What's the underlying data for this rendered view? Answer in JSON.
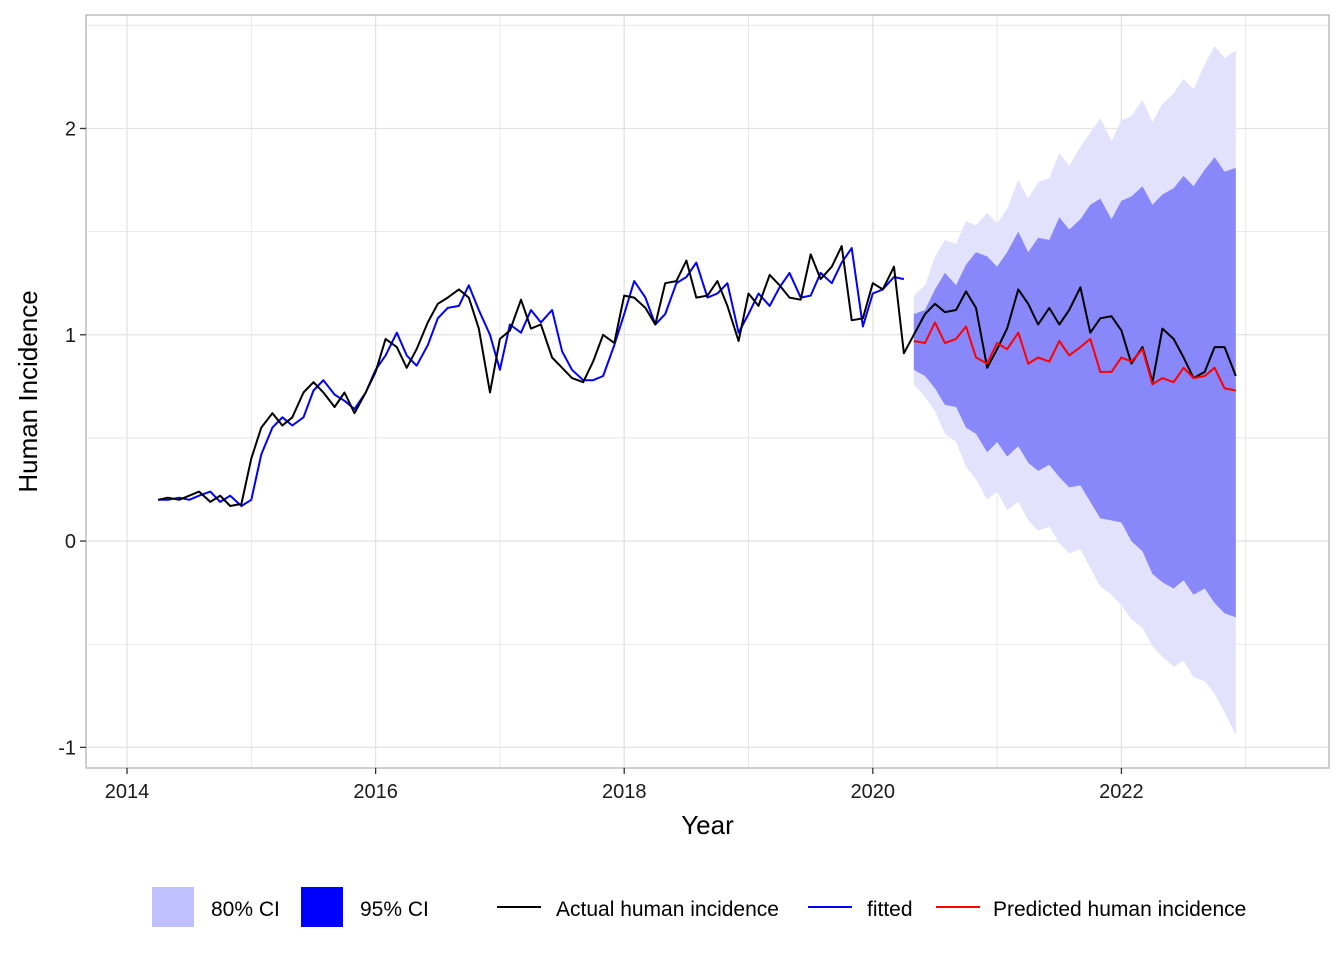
{
  "chart_data": {
    "type": "line",
    "title": "",
    "xlabel": "Year",
    "ylabel": "Human Incidence",
    "xlim": [
      2013.67,
      2023.67
    ],
    "ylim": [
      -1.1,
      2.55
    ],
    "x_ticks": [
      2014,
      2016,
      2018,
      2020,
      2022
    ],
    "x_tick_labels": [
      "2014",
      "2016",
      "2018",
      "2020",
      "2022"
    ],
    "y_ticks": [
      -1,
      0,
      1,
      2
    ],
    "y_tick_labels": [
      "-1",
      "0",
      "1",
      "2"
    ],
    "grid": true,
    "legend_position": "bottom",
    "legend": {
      "fills": [
        {
          "label": "80% CI",
          "color": "#c0c0ff"
        },
        {
          "label": "95% CI",
          "color": "#0000ff"
        }
      ],
      "lines": [
        {
          "label": "Actual human incidence",
          "color": "#000000"
        },
        {
          "label": "fitted",
          "color": "#0000ff"
        },
        {
          "label": "Predicted human incidence",
          "color": "#ff0000"
        }
      ]
    },
    "colors": {
      "band_outer": "#e2e2fc",
      "band_inner": "#8888fa",
      "actual": "#000000",
      "fitted": "#0000ff",
      "predicted": "#ff0000",
      "grid": "#e3e3e3",
      "panel_border": "#b3b3b3"
    },
    "bands": {
      "x": [
        2020.33,
        2020.42,
        2020.5,
        2020.58,
        2020.67,
        2020.75,
        2020.83,
        2020.92,
        2021.0,
        2021.08,
        2021.17,
        2021.25,
        2021.33,
        2021.42,
        2021.5,
        2021.58,
        2021.67,
        2021.75,
        2021.83,
        2021.92,
        2022.0,
        2022.08,
        2022.17,
        2022.25,
        2022.33,
        2022.42,
        2022.5,
        2022.58,
        2022.67,
        2022.75,
        2022.83,
        2022.92
      ],
      "outer_upper": [
        1.19,
        1.24,
        1.38,
        1.46,
        1.44,
        1.55,
        1.53,
        1.59,
        1.54,
        1.61,
        1.75,
        1.66,
        1.74,
        1.76,
        1.88,
        1.82,
        1.91,
        1.98,
        2.05,
        1.94,
        2.04,
        2.06,
        2.14,
        2.03,
        2.12,
        2.17,
        2.24,
        2.19,
        2.31,
        2.4,
        2.34,
        2.38
      ],
      "inner_upper": [
        1.1,
        1.12,
        1.22,
        1.3,
        1.24,
        1.34,
        1.4,
        1.38,
        1.33,
        1.4,
        1.5,
        1.4,
        1.47,
        1.46,
        1.57,
        1.51,
        1.56,
        1.63,
        1.66,
        1.56,
        1.65,
        1.67,
        1.72,
        1.63,
        1.68,
        1.71,
        1.77,
        1.72,
        1.8,
        1.86,
        1.79,
        1.81
      ],
      "inner_lower": [
        0.83,
        0.8,
        0.74,
        0.66,
        0.65,
        0.55,
        0.52,
        0.43,
        0.48,
        0.41,
        0.46,
        0.38,
        0.34,
        0.37,
        0.31,
        0.26,
        0.27,
        0.19,
        0.11,
        0.1,
        0.09,
        0.0,
        -0.05,
        -0.16,
        -0.2,
        -0.23,
        -0.19,
        -0.26,
        -0.23,
        -0.3,
        -0.35,
        -0.37
      ],
      "outer_lower": [
        0.76,
        0.7,
        0.63,
        0.52,
        0.48,
        0.36,
        0.3,
        0.2,
        0.24,
        0.15,
        0.19,
        0.1,
        0.05,
        0.07,
        -0.01,
        -0.06,
        -0.04,
        -0.13,
        -0.22,
        -0.26,
        -0.31,
        -0.38,
        -0.42,
        -0.51,
        -0.56,
        -0.61,
        -0.58,
        -0.66,
        -0.68,
        -0.74,
        -0.83,
        -0.94
      ]
    },
    "series": [
      {
        "name": "Actual human incidence",
        "x": [
          2014.25,
          2014.33,
          2014.42,
          2014.5,
          2014.58,
          2014.67,
          2014.75,
          2014.83,
          2014.92,
          2015.0,
          2015.08,
          2015.17,
          2015.25,
          2015.33,
          2015.42,
          2015.5,
          2015.58,
          2015.67,
          2015.75,
          2015.83,
          2015.92,
          2016.0,
          2016.08,
          2016.17,
          2016.25,
          2016.33,
          2016.42,
          2016.5,
          2016.58,
          2016.67,
          2016.75,
          2016.83,
          2016.92,
          2017.0,
          2017.08,
          2017.17,
          2017.25,
          2017.33,
          2017.42,
          2017.5,
          2017.58,
          2017.67,
          2017.75,
          2017.83,
          2017.92,
          2018.0,
          2018.08,
          2018.17,
          2018.25,
          2018.33,
          2018.42,
          2018.5,
          2018.58,
          2018.67,
          2018.75,
          2018.83,
          2018.92,
          2019.0,
          2019.08,
          2019.17,
          2019.25,
          2019.33,
          2019.42,
          2019.5,
          2019.58,
          2019.67,
          2019.75,
          2019.83,
          2019.92,
          2020.0,
          2020.08,
          2020.17,
          2020.25,
          2020.33,
          2020.42,
          2020.5,
          2020.58,
          2020.67,
          2020.75,
          2020.83,
          2020.92,
          2021.0,
          2021.08,
          2021.17,
          2021.25,
          2021.33,
          2021.42,
          2021.5,
          2021.58,
          2021.67,
          2021.75,
          2021.83,
          2021.92,
          2022.0,
          2022.08,
          2022.17,
          2022.25,
          2022.33,
          2022.42,
          2022.5,
          2022.58,
          2022.67,
          2022.75,
          2022.83,
          2022.92
        ],
        "values": [
          0.2,
          0.21,
          0.2,
          0.22,
          0.24,
          0.19,
          0.22,
          0.17,
          0.18,
          0.4,
          0.55,
          0.62,
          0.56,
          0.6,
          0.72,
          0.77,
          0.72,
          0.65,
          0.72,
          0.62,
          0.72,
          0.82,
          0.98,
          0.94,
          0.84,
          0.93,
          1.06,
          1.15,
          1.18,
          1.22,
          1.18,
          1.03,
          0.72,
          0.98,
          1.02,
          1.17,
          1.03,
          1.05,
          0.89,
          0.84,
          0.79,
          0.77,
          0.87,
          1.0,
          0.96,
          1.19,
          1.18,
          1.13,
          1.05,
          1.25,
          1.26,
          1.36,
          1.18,
          1.19,
          1.26,
          1.14,
          0.97,
          1.2,
          1.14,
          1.29,
          1.24,
          1.18,
          1.17,
          1.39,
          1.27,
          1.33,
          1.43,
          1.07,
          1.08,
          1.25,
          1.22,
          1.33,
          0.91,
          1.0,
          1.1,
          1.15,
          1.11,
          1.12,
          1.21,
          1.13,
          0.84,
          0.93,
          1.03,
          1.22,
          1.15,
          1.05,
          1.13,
          1.05,
          1.12,
          1.23,
          1.01,
          1.08,
          1.09,
          1.02,
          0.86,
          0.94,
          0.77,
          1.03,
          0.98,
          0.89,
          0.79,
          0.82,
          0.94,
          0.94,
          0.8
        ]
      },
      {
        "name": "fitted",
        "x": [
          2014.25,
          2014.33,
          2014.42,
          2014.5,
          2014.58,
          2014.67,
          2014.75,
          2014.83,
          2014.92,
          2015.0,
          2015.08,
          2015.17,
          2015.25,
          2015.33,
          2015.42,
          2015.5,
          2015.58,
          2015.67,
          2015.75,
          2015.83,
          2015.92,
          2016.0,
          2016.08,
          2016.17,
          2016.25,
          2016.33,
          2016.42,
          2016.5,
          2016.58,
          2016.67,
          2016.75,
          2016.83,
          2016.92,
          2017.0,
          2017.08,
          2017.17,
          2017.25,
          2017.33,
          2017.42,
          2017.5,
          2017.58,
          2017.67,
          2017.75,
          2017.83,
          2017.92,
          2018.0,
          2018.08,
          2018.17,
          2018.25,
          2018.33,
          2018.42,
          2018.5,
          2018.58,
          2018.67,
          2018.75,
          2018.83,
          2018.92,
          2019.0,
          2019.08,
          2019.17,
          2019.25,
          2019.33,
          2019.42,
          2019.5,
          2019.58,
          2019.67,
          2019.75,
          2019.83,
          2019.92,
          2020.0,
          2020.08,
          2020.17,
          2020.25
        ],
        "values": [
          0.2,
          0.2,
          0.21,
          0.2,
          0.22,
          0.24,
          0.19,
          0.22,
          0.17,
          0.2,
          0.42,
          0.55,
          0.6,
          0.56,
          0.6,
          0.73,
          0.78,
          0.71,
          0.68,
          0.64,
          0.72,
          0.83,
          0.9,
          1.01,
          0.9,
          0.85,
          0.95,
          1.08,
          1.13,
          1.14,
          1.24,
          1.12,
          1.0,
          0.83,
          1.05,
          1.01,
          1.12,
          1.06,
          1.12,
          0.92,
          0.83,
          0.78,
          0.78,
          0.8,
          0.95,
          1.1,
          1.26,
          1.18,
          1.05,
          1.1,
          1.25,
          1.28,
          1.35,
          1.18,
          1.2,
          1.25,
          1.01,
          1.1,
          1.2,
          1.14,
          1.23,
          1.3,
          1.18,
          1.19,
          1.3,
          1.25,
          1.35,
          1.42,
          1.04,
          1.2,
          1.22,
          1.28,
          1.27
        ]
      },
      {
        "name": "Predicted human incidence",
        "x": [
          2020.33,
          2020.42,
          2020.5,
          2020.58,
          2020.67,
          2020.75,
          2020.83,
          2020.92,
          2021.0,
          2021.08,
          2021.17,
          2021.25,
          2021.33,
          2021.42,
          2021.5,
          2021.58,
          2021.67,
          2021.75,
          2021.83,
          2021.92,
          2022.0,
          2022.08,
          2022.17,
          2022.25,
          2022.33,
          2022.42,
          2022.5,
          2022.58,
          2022.67,
          2022.75,
          2022.83,
          2022.92
        ],
        "values": [
          0.97,
          0.96,
          1.06,
          0.96,
          0.98,
          1.04,
          0.89,
          0.86,
          0.96,
          0.93,
          1.01,
          0.86,
          0.89,
          0.87,
          0.97,
          0.9,
          0.94,
          0.98,
          0.82,
          0.82,
          0.89,
          0.87,
          0.93,
          0.76,
          0.79,
          0.77,
          0.84,
          0.79,
          0.8,
          0.84,
          0.74,
          0.73
        ]
      }
    ]
  }
}
